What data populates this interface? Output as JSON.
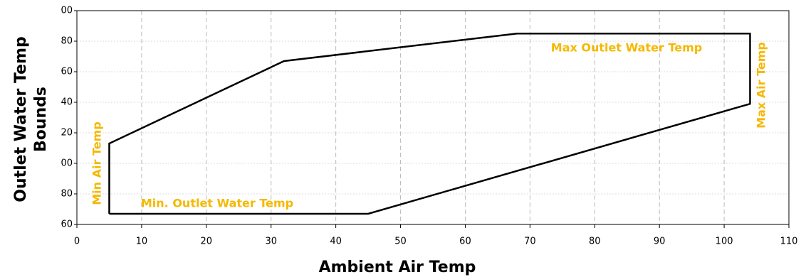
{
  "chart_data": {
    "type": "line",
    "xlabel": "Ambient Air Temp",
    "ylabel": [
      "Outlet Water Temp",
      "Bounds"
    ],
    "x": [
      5,
      45,
      104,
      104,
      68,
      32,
      5,
      5
    ],
    "series": [
      {
        "color": "#000000",
        "values": [
          67,
          67,
          139,
          185,
          185,
          167,
          113,
          67
        ]
      }
    ],
    "xlim": [
      0,
      110
    ],
    "xticks": [
      0,
      10,
      20,
      30,
      40,
      50,
      60,
      70,
      80,
      90,
      100,
      110
    ],
    "ylim": [
      60,
      200
    ],
    "yticks": [
      60,
      80,
      {
        "value": 100,
        "label": "00"
      },
      {
        "value": 120,
        "label": "20"
      },
      {
        "value": 140,
        "label": "40"
      },
      {
        "value": 160,
        "label": "60"
      },
      {
        "value": 180,
        "label": "80"
      },
      {
        "value": 200,
        "label": "00"
      }
    ],
    "grid": true,
    "annotations": [
      {
        "text": "Max Outlet Water Temp",
        "color": "#f5b800"
      },
      {
        "text": "Max Air Temp",
        "color": "#f5b800"
      },
      {
        "text": "Min Air Temp",
        "color": "#f5b800"
      },
      {
        "text": "Min. Outlet Water Temp",
        "color": "#f5b800"
      }
    ]
  }
}
